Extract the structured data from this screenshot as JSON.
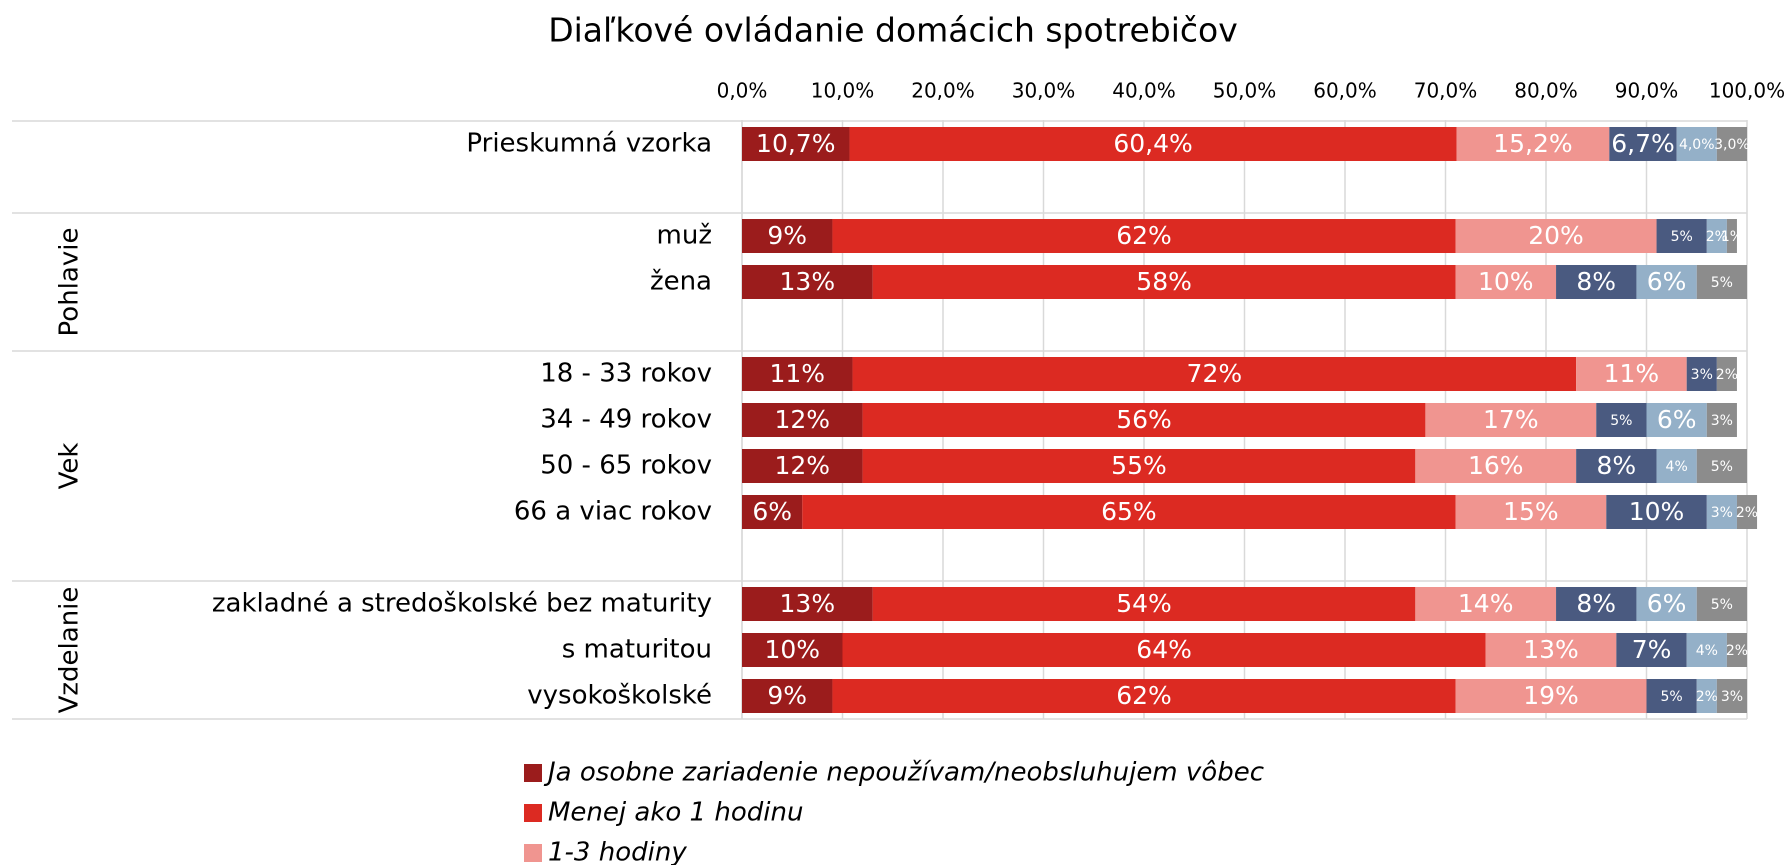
{
  "chart_data": {
    "type": "stacked-bar-horizontal",
    "title": "Diaľkové ovládanie domácich spotrebičov",
    "categories": [
      "Prieskumná vzorka",
      null,
      "muž",
      "žena",
      null,
      "18 - 33 rokov",
      "34 - 49 rokov",
      "50 - 65 rokov",
      "66 a viac rokov",
      null,
      "zakladné a stredoškolské bez maturity",
      "s maturitou",
      "vysokoškolské"
    ],
    "groups": [
      "Pohlavie",
      "Vek",
      "Vzdelanie"
    ],
    "series": [
      {
        "name": "Ja osobne zariadenie nepoužívam/neobsluhujem vôbec",
        "color": "#9b1c1c",
        "values": [
          10.7,
          null,
          9,
          13,
          null,
          11,
          12,
          12,
          6,
          null,
          13,
          10,
          9
        ],
        "value_labels": [
          "10,7%",
          null,
          "9%",
          "13%",
          null,
          "11%",
          "12%",
          "12%",
          "6%",
          null,
          "13%",
          "10%",
          "9%"
        ]
      },
      {
        "name": "Menej ako 1 hodinu",
        "color": "#dc2a22",
        "values": [
          60.4,
          null,
          62,
          58,
          null,
          72,
          56,
          55,
          65,
          null,
          54,
          64,
          62
        ],
        "value_labels": [
          "60,4%",
          null,
          "62%",
          "58%",
          null,
          "72%",
          "56%",
          "55%",
          "65%",
          null,
          "54%",
          "64%",
          "62%"
        ]
      },
      {
        "name": "1-3 hodiny",
        "color": "#f09590",
        "values": [
          15.2,
          null,
          20,
          10,
          null,
          11,
          17,
          16,
          15,
          null,
          14,
          13,
          19
        ],
        "value_labels": [
          "15,2%",
          null,
          "20%",
          "10%",
          null,
          "11%",
          "17%",
          "16%",
          "15%",
          null,
          "14%",
          "13%",
          "19%"
        ]
      },
      {
        "color": "#4a5a80",
        "values": [
          6.7,
          null,
          5,
          8,
          null,
          3,
          5,
          8,
          10,
          null,
          8,
          7,
          5
        ],
        "value_labels": [
          "6,7%",
          null,
          "5%",
          "8%",
          null,
          "3%",
          "5%",
          "8%",
          "10%",
          null,
          "8%",
          "7%",
          "5%"
        ]
      },
      {
        "color": "#94b0c8",
        "values": [
          4.0,
          null,
          2,
          6,
          null,
          null,
          6,
          4,
          3,
          null,
          6,
          4,
          2
        ],
        "value_labels": [
          "4,0%",
          null,
          "2%",
          "6%",
          null,
          null,
          "6%",
          "4%",
          "3%",
          null,
          "6%",
          "4%",
          "2%"
        ]
      },
      {
        "color": "#8c8c8c",
        "values": [
          3.0,
          null,
          1,
          5,
          null,
          2,
          3,
          5,
          2,
          null,
          5,
          2,
          3
        ],
        "value_labels": [
          "3,0%",
          null,
          "1%",
          "5%",
          null,
          "2%",
          "3%",
          "5%",
          "2%",
          null,
          "5%",
          "2%",
          "3%"
        ]
      }
    ],
    "xlim": [
      0,
      100
    ],
    "xticks": [
      {
        "value": 0,
        "label": "0,0%"
      },
      {
        "value": 10,
        "label": "10,0%"
      },
      {
        "value": 20,
        "label": "20,0%"
      },
      {
        "value": 30,
        "label": "30,0%"
      },
      {
        "value": 40,
        "label": "40,0%"
      },
      {
        "value": 50,
        "label": "50,0%"
      },
      {
        "value": 60,
        "label": "60,0%"
      },
      {
        "value": 70,
        "label": "70,0%"
      },
      {
        "value": 80,
        "label": "80,0%"
      },
      {
        "value": 90,
        "label": "90,0%"
      },
      {
        "value": 100,
        "label": "100,0%"
      }
    ],
    "grid": true
  }
}
